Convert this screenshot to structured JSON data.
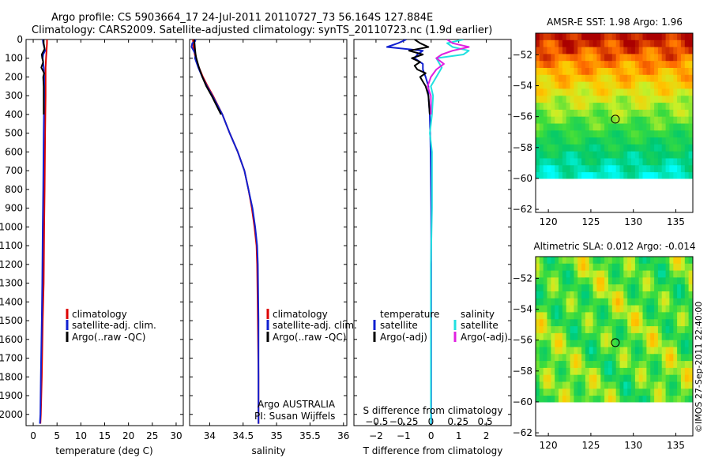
{
  "header": {
    "line1": "Argo profile: CS 5903664_17 24-Jul-2011 20110727_73 56.164S 127.884E",
    "line2": "Climatology: CARS2009. Satellite-adjusted climatology: synTS_20110723.nc (1.9d earlier)"
  },
  "colors": {
    "climatology": "#dd0000",
    "satellite": "#1020d0",
    "argo": "#000000",
    "sal_satellite": "#22e0e0",
    "sal_argo": "#e020e0"
  },
  "depth_axis": {
    "ylim": [
      0,
      2060
    ],
    "ticks": [
      0,
      100,
      200,
      300,
      400,
      500,
      600,
      700,
      800,
      900,
      1000,
      1100,
      1200,
      1300,
      1400,
      1500,
      1600,
      1700,
      1800,
      1900,
      2000
    ]
  },
  "chart_data": [
    {
      "id": "temperature",
      "type": "line",
      "xlabel": "temperature (deg C)",
      "xlim": [
        -1.5,
        31.5
      ],
      "xticks": [
        0,
        5,
        10,
        15,
        20,
        25,
        30
      ],
      "xtick_labels": [
        "0",
        "5",
        "10",
        "15",
        "20",
        "25",
        "30"
      ],
      "legend": [
        "climatology",
        "satellite-adj. clim.",
        "Argo(..raw -QC)"
      ],
      "series": [
        {
          "name": "climatology",
          "key": "climatology",
          "depth": [
            0,
            20,
            60,
            100,
            150,
            200,
            300,
            500,
            800,
            1000,
            1300,
            1500,
            1800,
            2000,
            2050
          ],
          "values": [
            2.9,
            2.9,
            2.8,
            2.7,
            2.6,
            2.6,
            2.6,
            2.5,
            2.4,
            2.3,
            2.2,
            2.0,
            1.8,
            1.6,
            1.5
          ]
        },
        {
          "name": "satellite-adj. clim.",
          "key": "satellite",
          "depth": [
            0,
            20,
            40,
            60,
            80,
            100,
            150,
            200,
            300,
            500,
            800,
            1000,
            1300,
            1500,
            1800,
            2000,
            2050
          ],
          "values": [
            2.0,
            2.1,
            2.3,
            2.5,
            2.1,
            2.0,
            2.2,
            2.3,
            2.3,
            2.2,
            2.1,
            2.0,
            1.9,
            1.8,
            1.6,
            1.5,
            1.4
          ]
        },
        {
          "name": "Argo(..raw -QC)",
          "key": "argo",
          "depth": [
            0,
            20,
            50,
            80,
            100,
            120,
            150,
            180,
            200,
            250,
            300,
            400
          ],
          "values": [
            2.2,
            2.2,
            2.4,
            1.8,
            1.9,
            2.1,
            1.7,
            2.3,
            2.1,
            2.2,
            2.2,
            2.2
          ]
        }
      ]
    },
    {
      "id": "salinity",
      "type": "line",
      "xlabel": "salinity",
      "xlim": [
        33.7,
        36.05
      ],
      "xticks": [
        34,
        34.5,
        35,
        35.5,
        36
      ],
      "xtick_labels": [
        "34",
        "34.5",
        "35",
        "35.5",
        "36"
      ],
      "legend": [
        "climatology",
        "satellite-adj. clim.",
        "Argo(..raw -QC)"
      ],
      "annotation": [
        "Argo AUSTRALIA",
        "PI: Susan Wijffels"
      ],
      "series": [
        {
          "name": "climatology",
          "key": "climatology",
          "depth": [
            0,
            50,
            100,
            150,
            200,
            250,
            300,
            400,
            500,
            600,
            700,
            800,
            900,
            1000,
            1100,
            1200,
            1500,
            1800,
            2000,
            2050
          ],
          "values": [
            33.75,
            33.76,
            33.79,
            33.84,
            33.9,
            33.97,
            34.05,
            34.19,
            34.3,
            34.42,
            34.52,
            34.58,
            34.63,
            34.67,
            34.7,
            34.71,
            34.72,
            34.73,
            34.73,
            34.73
          ]
        },
        {
          "name": "satellite-adj. clim.",
          "key": "satellite",
          "depth": [
            0,
            10,
            20,
            40,
            60,
            80,
            100,
            150,
            200,
            250,
            300,
            400,
            500,
            600,
            700,
            800,
            900,
            1000,
            1100,
            1200,
            1500,
            1800,
            2000,
            2050
          ],
          "values": [
            33.79,
            33.78,
            33.74,
            33.73,
            33.76,
            33.79,
            33.78,
            33.83,
            33.89,
            33.96,
            34.04,
            34.19,
            34.3,
            34.42,
            34.52,
            34.58,
            34.64,
            34.68,
            34.71,
            34.72,
            34.73,
            34.73,
            34.73,
            34.73
          ]
        },
        {
          "name": "Argo(..raw -QC)",
          "key": "argo",
          "depth": [
            0,
            50,
            80,
            100,
            150,
            200,
            250,
            300,
            400
          ],
          "values": [
            33.77,
            33.78,
            33.79,
            33.8,
            33.84,
            33.89,
            33.95,
            34.03,
            34.17
          ]
        }
      ]
    },
    {
      "id": "differences",
      "type": "line",
      "xlabel": "T difference from climatology",
      "xlim": [
        -2.8,
        2.9
      ],
      "xticks": [
        -2,
        -1,
        0,
        1,
        2
      ],
      "xtick_labels": [
        "−2",
        "−1",
        "0",
        "1",
        "2"
      ],
      "top_xlabel": "S difference from climatology",
      "top_xticks": [
        -0.5,
        -0.25,
        0,
        0.25,
        0.5
      ],
      "top_xtick_labels": [
        "−0.5",
        "−0.25",
        "0",
        "0.25",
        "0.5"
      ],
      "legend_temperature": [
        "temperature",
        "satellite",
        "Argo(-adj)"
      ],
      "legend_salinity": [
        "salinity",
        "satellite",
        "Argo(-adj)"
      ],
      "series": [
        {
          "name": "temperature satellite",
          "key": "satellite",
          "depth": [
            0,
            20,
            40,
            60,
            80,
            100,
            130,
            160,
            200,
            250,
            300,
            400,
            600,
            900,
            1200,
            1600,
            2000,
            2050
          ],
          "values": [
            -0.9,
            -1.2,
            -1.6,
            -0.3,
            -0.5,
            -0.6,
            -0.3,
            -0.3,
            -0.2,
            -0.1,
            -0.1,
            -0.05,
            -0.02,
            0,
            0,
            0,
            0,
            0
          ]
        },
        {
          "name": "temperature Argo(-adj)",
          "key": "argo",
          "depth": [
            0,
            20,
            40,
            60,
            80,
            100,
            120,
            140,
            160,
            180,
            200,
            250,
            300,
            400
          ],
          "values": [
            -0.6,
            -0.4,
            -0.1,
            -0.8,
            -0.3,
            -0.7,
            -0.4,
            -0.6,
            -0.5,
            -0.2,
            -0.4,
            -0.2,
            -0.1,
            -0.05
          ]
        },
        {
          "name": "salinity satellite",
          "key": "sal_satellite",
          "depth": [
            0,
            20,
            40,
            60,
            80,
            100,
            150,
            200,
            250,
            300,
            400,
            500,
            600,
            900,
            1200,
            1600,
            2000,
            2050
          ],
          "values": [
            0.3,
            0.15,
            0.2,
            0.35,
            0.3,
            0.05,
            0.1,
            0.05,
            0.0,
            0.02,
            0.01,
            -0.01,
            0.01,
            0.01,
            0.0,
            0.0,
            0.0,
            0.0
          ]
        },
        {
          "name": "salinity Argo(-adj)",
          "key": "sal_argo",
          "depth": [
            0,
            20,
            40,
            60,
            80,
            100,
            130,
            160,
            200,
            250,
            300,
            400
          ],
          "values": [
            0.15,
            0.2,
            0.35,
            0.2,
            0.1,
            0.05,
            0.12,
            0.05,
            0.0,
            -0.03,
            0.0,
            0.0
          ]
        }
      ]
    },
    {
      "id": "sst_map",
      "type": "heatmap",
      "title": "AMSR-E SST: 1.98 Argo: 1.96",
      "xlim": [
        118.5,
        137
      ],
      "ylim": [
        -62.2,
        -50.6
      ],
      "xticks": [
        120,
        125,
        130,
        135
      ],
      "yticks": [
        -52,
        -54,
        -56,
        -58,
        -60,
        -62
      ],
      "ytick_labels": [
        "−52",
        "−54",
        "−56",
        "−58",
        "−60",
        "−62"
      ],
      "marker": {
        "lon": 127.884,
        "lat": -56.164
      },
      "no_data_below_lat": -60
    },
    {
      "id": "sla_map",
      "type": "heatmap",
      "title": "Altimetric SLA: 0.012 Argo: -0.014",
      "xlim": [
        118.5,
        137
      ],
      "ylim": [
        -62.2,
        -50.6
      ],
      "xticks": [
        120,
        125,
        130,
        135
      ],
      "yticks": [
        -52,
        -54,
        -56,
        -58,
        -60,
        -62
      ],
      "ytick_labels": [
        "−52",
        "−54",
        "−56",
        "−58",
        "−60",
        "−62"
      ],
      "marker": {
        "lon": 127.884,
        "lat": -56.164
      },
      "no_data_below_lat": -60
    }
  ],
  "credit": "©IMOS 27-Sep-2011 22:40:00"
}
